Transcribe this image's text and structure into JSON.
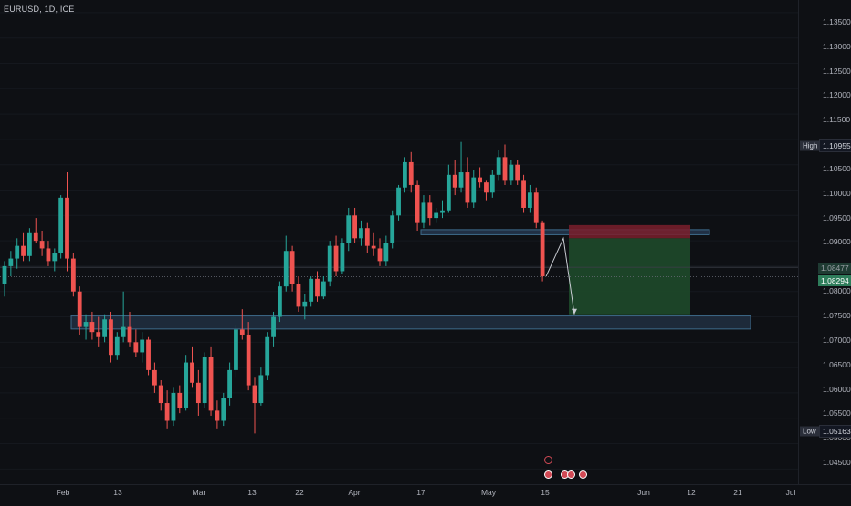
{
  "symbol": {
    "label": "EURUSD, 1D, ICE"
  },
  "price_axis": {
    "ticks": [
      "1.13500",
      "1.13000",
      "1.12500",
      "1.12000",
      "1.11500",
      "1.10500",
      "1.10000",
      "1.09500",
      "1.09000",
      "1.08000",
      "1.07500",
      "1.07000",
      "1.06500",
      "1.06000",
      "1.05500",
      "1.05000",
      "1.04500"
    ],
    "high_label": "High",
    "high_value": "1.10955",
    "low_label": "Low",
    "low_value": "1.05163",
    "current_price": "1.08294",
    "alt_price": "1.08477"
  },
  "time_axis": {
    "ticks": [
      "Feb",
      "13",
      "Mar",
      "13",
      "22",
      "Apr",
      "17",
      "May",
      "15",
      "Jun",
      "12",
      "21",
      "Jul"
    ]
  },
  "colors": {
    "bull": "#26a69a",
    "bear": "#ef5350",
    "zone": "#2a3f5a",
    "profit": "#1e4d2b",
    "stop": "#7a1f2b"
  },
  "events": {
    "icons": [
      "earnings-icon",
      "economic-event-icon",
      "economic-event-icon",
      "economic-event-icon",
      "economic-event-icon"
    ]
  },
  "chart_data": {
    "type": "candlestick",
    "symbol": "EURUSD",
    "interval": "1D",
    "ylim": [
      1.042,
      1.1375
    ],
    "candles": [
      [
        1.0815,
        1.086,
        1.079,
        1.085
      ],
      [
        1.085,
        1.088,
        1.083,
        1.0865
      ],
      [
        1.0865,
        1.0905,
        1.0845,
        1.089
      ],
      [
        1.089,
        1.0915,
        1.086,
        1.087
      ],
      [
        1.087,
        1.0925,
        1.086,
        1.0915
      ],
      [
        1.0915,
        1.0945,
        1.0895,
        1.09
      ],
      [
        1.09,
        1.092,
        1.087,
        1.0885
      ],
      [
        1.0885,
        1.09,
        1.085,
        1.086
      ],
      [
        1.086,
        1.0885,
        1.084,
        1.0875
      ],
      [
        1.0875,
        1.099,
        1.0865,
        1.0985
      ],
      [
        1.0985,
        1.1035,
        1.084,
        1.0865
      ],
      [
        1.0865,
        1.0875,
        1.079,
        1.08
      ],
      [
        1.08,
        1.081,
        1.0715,
        1.073
      ],
      [
        1.073,
        1.0755,
        1.0705,
        1.074
      ],
      [
        1.074,
        1.076,
        1.0705,
        1.072
      ],
      [
        1.072,
        1.075,
        1.069,
        1.071
      ],
      [
        1.071,
        1.0755,
        1.07,
        1.0745
      ],
      [
        1.0745,
        1.076,
        1.066,
        1.0675
      ],
      [
        1.0675,
        1.072,
        1.0665,
        1.071
      ],
      [
        1.071,
        1.08,
        1.07,
        1.073
      ],
      [
        1.073,
        1.076,
        1.069,
        1.07
      ],
      [
        1.07,
        1.0725,
        1.067,
        1.068
      ],
      [
        1.068,
        1.072,
        1.066,
        1.0705
      ],
      [
        1.0705,
        1.071,
        1.0635,
        1.0645
      ],
      [
        1.0645,
        1.066,
        1.06,
        1.0615
      ],
      [
        1.0615,
        1.0625,
        1.0565,
        1.058
      ],
      [
        1.058,
        1.0605,
        1.053,
        1.0545
      ],
      [
        1.0545,
        1.061,
        1.0535,
        1.06
      ],
      [
        1.06,
        1.0615,
        1.056,
        1.057
      ],
      [
        1.057,
        1.0675,
        1.0565,
        1.066
      ],
      [
        1.066,
        1.069,
        1.061,
        1.062
      ],
      [
        1.062,
        1.0645,
        1.0555,
        1.058
      ],
      [
        1.058,
        1.068,
        1.057,
        1.067
      ],
      [
        1.067,
        1.069,
        1.0555,
        1.0565
      ],
      [
        1.0565,
        1.0585,
        1.053,
        1.0545
      ],
      [
        1.0545,
        1.06,
        1.0535,
        1.059
      ],
      [
        1.059,
        1.066,
        1.0575,
        1.0645
      ],
      [
        1.0645,
        1.0735,
        1.063,
        1.0725
      ],
      [
        1.0725,
        1.0765,
        1.0705,
        1.0715
      ],
      [
        1.0715,
        1.074,
        1.0605,
        1.0615
      ],
      [
        1.0615,
        1.063,
        1.052,
        1.058
      ],
      [
        1.058,
        1.065,
        1.0575,
        1.0635
      ],
      [
        1.0635,
        1.072,
        1.0625,
        1.071
      ],
      [
        1.071,
        1.076,
        1.069,
        1.075
      ],
      [
        1.075,
        1.082,
        1.074,
        1.081
      ],
      [
        1.081,
        1.091,
        1.08,
        1.088
      ],
      [
        1.088,
        1.089,
        1.08,
        1.0815
      ],
      [
        1.0815,
        1.083,
        1.076,
        1.077
      ],
      [
        1.077,
        1.0795,
        1.0745,
        1.078
      ],
      [
        1.078,
        1.083,
        1.077,
        1.0825
      ],
      [
        1.0825,
        1.084,
        1.078,
        1.079
      ],
      [
        1.079,
        1.083,
        1.0785,
        1.082
      ],
      [
        1.082,
        1.09,
        1.081,
        1.089
      ],
      [
        1.089,
        1.091,
        1.083,
        1.084
      ],
      [
        1.084,
        1.0905,
        1.0835,
        1.0895
      ],
      [
        1.0895,
        1.0965,
        1.088,
        1.095
      ],
      [
        1.095,
        1.0965,
        1.0895,
        1.0905
      ],
      [
        1.0905,
        1.094,
        1.089,
        1.0925
      ],
      [
        1.0925,
        1.0935,
        1.0875,
        1.089
      ],
      [
        1.089,
        1.0915,
        1.087,
        1.0885
      ],
      [
        1.0885,
        1.0905,
        1.085,
        1.086
      ],
      [
        1.086,
        1.091,
        1.085,
        1.0895
      ],
      [
        1.0895,
        1.096,
        1.0885,
        1.095
      ],
      [
        1.095,
        1.101,
        1.094,
        1.1005
      ],
      [
        1.1005,
        1.1065,
        1.0995,
        1.1055
      ],
      [
        1.1055,
        1.1075,
        1.0995,
        1.101
      ],
      [
        1.101,
        1.102,
        1.092,
        1.0935
      ],
      [
        1.0935,
        1.099,
        1.0925,
        1.0975
      ],
      [
        1.0975,
        1.099,
        1.093,
        1.0945
      ],
      [
        1.0945,
        1.0965,
        1.0935,
        1.0955
      ],
      [
        1.0955,
        1.098,
        1.0945,
        1.096
      ],
      [
        1.096,
        1.105,
        1.0955,
        1.103
      ],
      [
        1.103,
        1.106,
        1.099,
        1.1005
      ],
      [
        1.1005,
        1.1095,
        1.0995,
        1.1035
      ],
      [
        1.1035,
        1.1065,
        1.0965,
        1.0975
      ],
      [
        1.0975,
        1.104,
        1.0965,
        1.1025
      ],
      [
        1.1025,
        1.1045,
        1.1005,
        1.1015
      ],
      [
        1.1015,
        1.102,
        1.098,
        1.0995
      ],
      [
        1.0995,
        1.104,
        1.0985,
        1.103
      ],
      [
        1.103,
        1.108,
        1.102,
        1.1065
      ],
      [
        1.1065,
        1.109,
        1.101,
        1.102
      ],
      [
        1.102,
        1.106,
        1.101,
        1.105
      ],
      [
        1.105,
        1.106,
        1.101,
        1.102
      ],
      [
        1.102,
        1.103,
        1.0955,
        1.0965
      ],
      [
        1.0965,
        1.101,
        1.0955,
        1.0995
      ],
      [
        1.0995,
        1.1005,
        1.0925,
        1.0935
      ],
      [
        1.0935,
        1.094,
        1.082,
        1.083
      ]
    ],
    "current_price": 1.08294,
    "zones": [
      {
        "name": "support",
        "top": 1.0752,
        "bottom": 1.0726
      },
      {
        "name": "resistance",
        "top": 1.0922,
        "bottom": 1.0912
      }
    ],
    "short_position": {
      "entry": 1.0905,
      "stop": 1.0931,
      "target": 1.0755
    },
    "projection": [
      [
        1.083,
        1.083
      ],
      [
        1.0905,
        1.0905
      ],
      [
        1.0755,
        1.0755
      ]
    ]
  }
}
